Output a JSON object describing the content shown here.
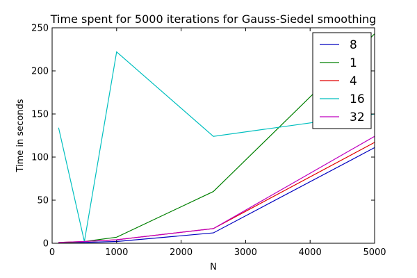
{
  "chart_data": {
    "type": "line",
    "title": "Time spent for 5000 iterations for Gauss-Siedel smoothing",
    "xlabel": "N",
    "ylabel": "Time in seconds",
    "xlim": [
      0,
      5000
    ],
    "ylim": [
      0,
      250
    ],
    "x_ticks": [
      0,
      1000,
      2000,
      3000,
      4000,
      5000
    ],
    "y_ticks": [
      0,
      50,
      100,
      150,
      200,
      250
    ],
    "grid": false,
    "legend_position": "top-right",
    "series": [
      {
        "name": "8",
        "color": "#0000bf",
        "x": [
          100,
          500,
          1000,
          2500,
          5000
        ],
        "y": [
          1,
          1,
          2,
          12,
          111
        ]
      },
      {
        "name": "1",
        "color": "#008000",
        "x": [
          100,
          500,
          1000,
          2500,
          5000
        ],
        "y": [
          0,
          2,
          7,
          60,
          243
        ]
      },
      {
        "name": "4",
        "color": "#e00000",
        "x": [
          100,
          500,
          1000,
          2500,
          5000
        ],
        "y": [
          1,
          2,
          4,
          17,
          117
        ]
      },
      {
        "name": "16",
        "color": "#00bfbf",
        "x": [
          100,
          500,
          1000,
          2500,
          5000
        ],
        "y": [
          134,
          2,
          222,
          124,
          150
        ]
      },
      {
        "name": "32",
        "color": "#bf00bf",
        "x": [
          100,
          500,
          1000,
          2500,
          5000
        ],
        "y": [
          1,
          2,
          4,
          17,
          124
        ]
      }
    ]
  }
}
